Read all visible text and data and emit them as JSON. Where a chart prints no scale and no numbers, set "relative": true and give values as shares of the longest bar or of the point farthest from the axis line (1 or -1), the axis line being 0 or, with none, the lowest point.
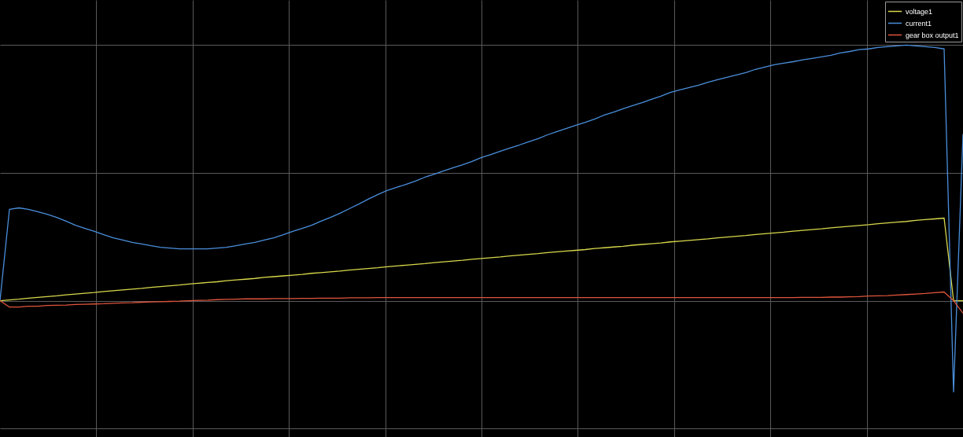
{
  "chart_data": {
    "type": "line",
    "relative": true,
    "grid": true,
    "legend": "top right",
    "tick_labels": false,
    "categories": [
      null,
      null,
      null,
      null,
      null,
      null,
      null,
      null,
      null,
      null,
      null,
      null,
      null,
      null,
      null,
      null,
      null,
      null,
      null,
      null,
      null,
      null,
      null,
      null,
      null,
      null,
      null,
      null,
      null,
      null,
      null,
      null,
      null,
      null,
      null,
      null,
      null,
      null,
      null,
      null,
      null,
      null,
      null,
      null,
      null,
      null,
      null,
      null,
      null,
      null,
      null,
      null,
      null,
      null,
      null,
      null,
      null,
      null,
      null,
      null,
      null,
      null,
      null,
      null,
      null,
      null,
      null,
      null,
      null,
      null,
      null,
      null,
      null,
      null,
      null,
      null,
      null,
      null,
      null,
      null,
      null,
      null,
      null,
      null,
      null,
      null,
      null,
      null,
      null,
      null,
      null,
      null,
      null,
      null,
      null,
      null,
      null,
      null,
      null,
      null,
      null,
      null,
      null
    ],
    "series": [
      {
        "name": "voltage1",
        "color": "#d8d84c",
        "values": [
          0,
          0.003,
          0.006,
          0.01,
          0.013,
          0.016,
          0.019,
          0.023,
          0.026,
          0.029,
          0.032,
          0.036,
          0.039,
          0.042,
          0.045,
          0.048,
          0.052,
          0.055,
          0.058,
          0.061,
          0.065,
          0.068,
          0.071,
          0.074,
          0.078,
          0.081,
          0.084,
          0.087,
          0.091,
          0.094,
          0.097,
          0.1,
          0.103,
          0.107,
          0.11,
          0.113,
          0.116,
          0.12,
          0.123,
          0.126,
          0.129,
          0.133,
          0.136,
          0.139,
          0.142,
          0.145,
          0.149,
          0.152,
          0.155,
          0.158,
          0.162,
          0.165,
          0.168,
          0.171,
          0.175,
          0.178,
          0.181,
          0.184,
          0.188,
          0.191,
          0.194,
          0.197,
          0.2,
          0.204,
          0.207,
          0.21,
          0.213,
          0.217,
          0.22,
          0.223,
          0.226,
          0.23,
          0.233,
          0.236,
          0.239,
          0.242,
          0.246,
          0.249,
          0.252,
          0.255,
          0.259,
          0.262,
          0.265,
          0.268,
          0.272,
          0.275,
          0.278,
          0.281,
          0.285,
          0.288,
          0.291,
          0.294,
          0.297,
          0.301,
          0.304,
          0.307,
          0.31,
          0.314,
          0.317,
          0.32,
          0.323,
          0,
          0
        ]
      },
      {
        "name": "current1",
        "color": "#4a8fdc",
        "values": [
          0,
          0.357,
          0.363,
          0.357,
          0.348,
          0.338,
          0.326,
          0.311,
          0.295,
          0.283,
          0.271,
          0.258,
          0.246,
          0.237,
          0.228,
          0.222,
          0.215,
          0.209,
          0.206,
          0.203,
          0.203,
          0.203,
          0.203,
          0.206,
          0.209,
          0.215,
          0.222,
          0.228,
          0.237,
          0.246,
          0.258,
          0.271,
          0.283,
          0.295,
          0.311,
          0.326,
          0.342,
          0.36,
          0.378,
          0.397,
          0.415,
          0.431,
          0.443,
          0.455,
          0.468,
          0.483,
          0.495,
          0.508,
          0.52,
          0.532,
          0.545,
          0.56,
          0.572,
          0.585,
          0.597,
          0.609,
          0.622,
          0.634,
          0.649,
          0.662,
          0.674,
          0.686,
          0.698,
          0.711,
          0.726,
          0.738,
          0.751,
          0.763,
          0.775,
          0.788,
          0.8,
          0.815,
          0.825,
          0.834,
          0.843,
          0.855,
          0.865,
          0.874,
          0.883,
          0.892,
          0.905,
          0.914,
          0.923,
          0.929,
          0.935,
          0.942,
          0.948,
          0.954,
          0.96,
          0.969,
          0.975,
          0.982,
          0.985,
          0.991,
          0.994,
          0.997,
          1,
          0.997,
          0.994,
          0.991,
          0.985,
          -0.357,
          0.652
        ]
      },
      {
        "name": "gear box output1",
        "color": "#e0553c",
        "values": [
          0,
          -0.025,
          -0.025,
          -0.022,
          -0.022,
          -0.019,
          -0.018,
          -0.017,
          -0.015,
          -0.014,
          -0.013,
          -0.012,
          -0.01,
          -0.009,
          -0.008,
          -0.006,
          -0.005,
          -0.004,
          -0.003,
          -0.002,
          0,
          0.001,
          0.002,
          0.004,
          0.005,
          0.006,
          0.007,
          0.007,
          0.007,
          0.008,
          0.008,
          0.008,
          0.009,
          0.009,
          0.01,
          0.01,
          0.01,
          0.011,
          0.011,
          0.011,
          0.012,
          0.012,
          0.012,
          0.012,
          0.012,
          0.012,
          0.012,
          0.012,
          0.012,
          0.012,
          0.012,
          0.012,
          0.012,
          0.012,
          0.012,
          0.012,
          0.012,
          0.012,
          0.012,
          0.012,
          0.012,
          0.012,
          0.012,
          0.012,
          0.012,
          0.012,
          0.012,
          0.012,
          0.012,
          0.012,
          0.012,
          0.012,
          0.012,
          0.012,
          0.012,
          0.012,
          0.012,
          0.012,
          0.012,
          0.012,
          0.012,
          0.012,
          0.012,
          0.012,
          0.012,
          0.013,
          0.013,
          0.013,
          0.014,
          0.014,
          0.015,
          0.016,
          0.018,
          0.019,
          0.02,
          0.022,
          0.024,
          0.026,
          0.028,
          0.031,
          0.034,
          0,
          -0.049
        ]
      }
    ]
  }
}
